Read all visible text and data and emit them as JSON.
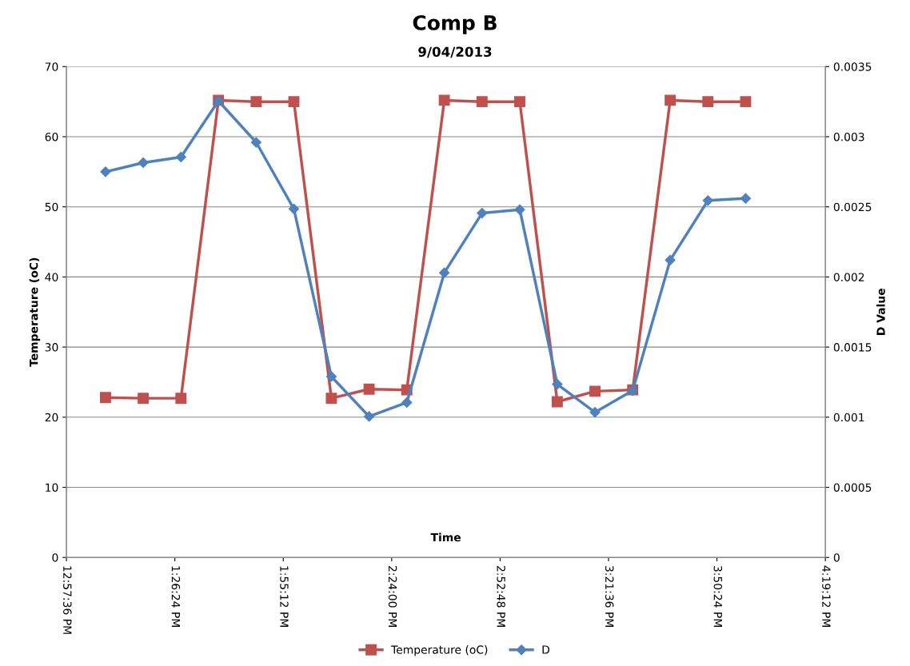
{
  "chart_data": {
    "type": "line",
    "title": "Comp B",
    "subtitle": "9/04/2013",
    "xlabel": "Time",
    "ylabel": "Temperature (oC)",
    "y2label": "D Value",
    "x": [
      13.133,
      13.3,
      13.467,
      13.633,
      13.8,
      13.967,
      14.133,
      14.3,
      14.467,
      14.633,
      14.8,
      14.967,
      15.133,
      15.3,
      15.467,
      15.633,
      15.8,
      15.967
    ],
    "series": [
      {
        "name": "Temperature (oC)",
        "color": "#c0504d",
        "marker": "square",
        "values": [
          22.8,
          22.7,
          22.7,
          65.2,
          65.0,
          65.0,
          22.7,
          24.0,
          23.9,
          65.2,
          65.0,
          65.0,
          22.2,
          23.7,
          23.9,
          65.2,
          65.0,
          65.0
        ]
      },
      {
        "name": "D",
        "color": "#4f81bd",
        "marker": "diamond",
        "axis": "y2",
        "values": [
          0.00275,
          0.002815,
          0.002855,
          0.003255,
          0.00296,
          0.002485,
          0.00129,
          0.001005,
          0.001105,
          0.00203,
          0.002455,
          0.00248,
          0.001235,
          0.001035,
          0.00119,
          0.00212,
          0.002545,
          0.00256
        ]
      }
    ],
    "xlim": [
      12.96,
      16.32
    ],
    "xticks": [
      {
        "value": 12.96,
        "label": "12:57:36 PM"
      },
      {
        "value": 13.44,
        "label": "1:26:24 PM"
      },
      {
        "value": 13.92,
        "label": "1:55:12 PM"
      },
      {
        "value": 14.4,
        "label": "2:24:00 PM"
      },
      {
        "value": 14.88,
        "label": "2:52:48 PM"
      },
      {
        "value": 15.36,
        "label": "3:21:36 PM"
      },
      {
        "value": 15.84,
        "label": "3:50:24 PM"
      },
      {
        "value": 16.32,
        "label": "4:19:12 PM"
      }
    ],
    "ylim": [
      0,
      70
    ],
    "yticks": [
      0,
      10,
      20,
      30,
      40,
      50,
      60,
      70
    ],
    "y2lim": [
      0,
      0.0035
    ],
    "y2ticks": [
      0,
      0.0005,
      0.001,
      0.0015,
      0.002,
      0.0025,
      0.003,
      0.0035
    ],
    "grid": "y",
    "legend": "bottom",
    "line_style": "solid"
  }
}
